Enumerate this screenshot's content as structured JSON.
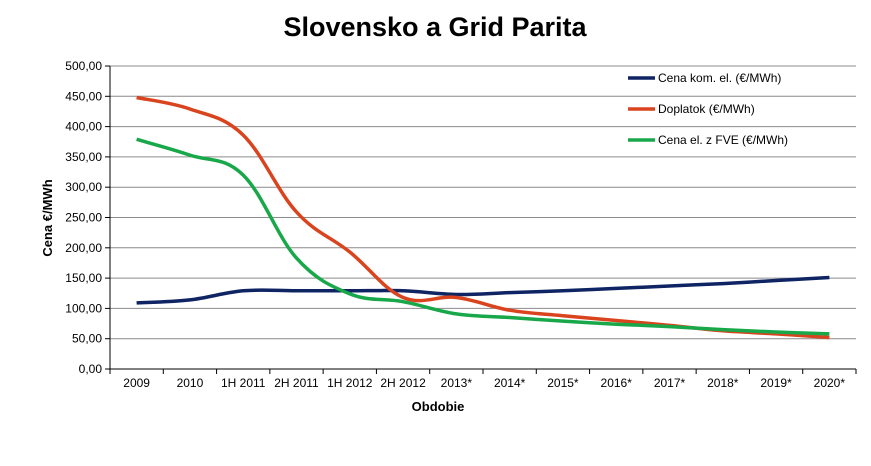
{
  "chart_data": {
    "type": "line",
    "title": "Slovensko a Grid Parita",
    "xlabel": "Obdobie",
    "ylabel": "Cena €/MWh",
    "ylim": [
      0,
      500
    ],
    "yticks": [
      0,
      50,
      100,
      150,
      200,
      250,
      300,
      350,
      400,
      450,
      500
    ],
    "ytick_labels": [
      "0,00",
      "50,00",
      "100,00",
      "150,00",
      "200,00",
      "250,00",
      "300,00",
      "350,00",
      "400,00",
      "450,00",
      "500,00"
    ],
    "grid": true,
    "legend_position": "top-right",
    "categories": [
      "2009",
      "2010",
      "1H 2011",
      "2H 2011",
      "1H 2012",
      "2H 2012",
      "2013*",
      "2014*",
      "2015*",
      "2016*",
      "2017*",
      "2018*",
      "2019*",
      "2020*"
    ],
    "series": [
      {
        "name": "Cena  kom. el. (€/MWh)",
        "color": "#0e2463",
        "values": [
          109,
          114,
          129,
          129,
          129,
          129,
          123,
          126,
          129,
          133,
          137,
          141,
          146,
          151
        ]
      },
      {
        "name": "Doplatok (€/MWh)",
        "color": "#d9441e",
        "values": [
          448,
          429,
          386,
          259,
          193,
          118,
          118,
          97,
          88,
          80,
          72,
          63,
          58,
          52
        ]
      },
      {
        "name": "Cena  el. z FVE (€/MWh)",
        "color": "#18a84a",
        "values": [
          379,
          353,
          320,
          183,
          124,
          111,
          91,
          85,
          79,
          74,
          70,
          65,
          61,
          58
        ]
      }
    ]
  }
}
